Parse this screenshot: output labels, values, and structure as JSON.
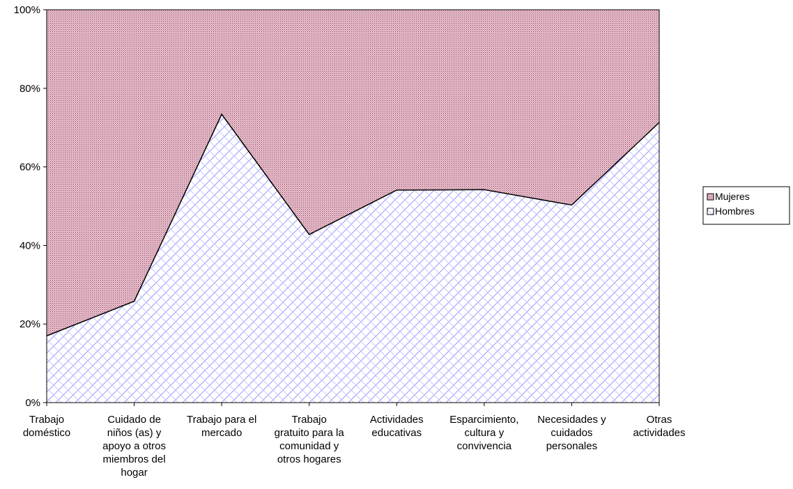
{
  "chart_data": {
    "type": "area",
    "stacked": "percent",
    "categories": [
      [
        "Trabajo",
        "doméstico"
      ],
      [
        "Cuidado de",
        "niños (as) y",
        "apoyo a otros",
        "miembros del",
        "hogar"
      ],
      [
        "Trabajo para el",
        "mercado"
      ],
      [
        "Trabajo",
        "gratuito para la",
        "comunidad y",
        "otros hogares"
      ],
      [
        "Actividades",
        "educativas"
      ],
      [
        "Esparcimiento,",
        "cultura y",
        "convivencia"
      ],
      [
        "Necesidades y",
        "cuidados",
        "personales"
      ],
      [
        "Otras",
        "actividades"
      ]
    ],
    "series": [
      {
        "name": "Hombres",
        "values": [
          17,
          25.8,
          73.4,
          42.8,
          54.1,
          54.2,
          50.3,
          71.3
        ],
        "color": "#9999ff"
      },
      {
        "name": "Mujeres",
        "values": [
          83,
          74.2,
          26.6,
          57.2,
          45.9,
          45.8,
          49.7,
          28.7
        ],
        "color": "#993366"
      }
    ],
    "ylim": [
      0,
      100
    ],
    "yticks": [
      "0%",
      "20%",
      "40%",
      "60%",
      "80%",
      "100%"
    ],
    "legend_order": [
      "Mujeres",
      "Hombres"
    ],
    "legend_placement": "right",
    "grid": false
  }
}
